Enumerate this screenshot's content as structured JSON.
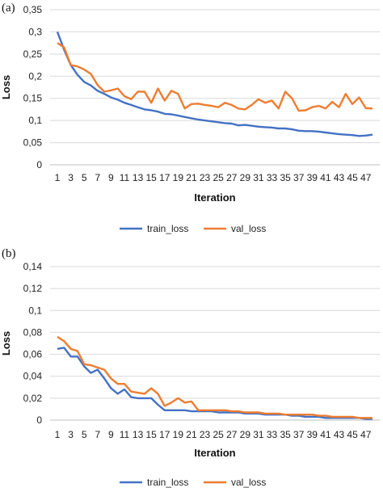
{
  "chart_data": [
    {
      "type": "line",
      "panel_label": "(a)",
      "xlabel": "Iteration",
      "ylabel": "Loss",
      "ylim": [
        0,
        0.35
      ],
      "yticks": [
        "0",
        "0,05",
        "0,1",
        "0,15",
        "0,2",
        "0,25",
        "0,3",
        "0,35"
      ],
      "x": [
        1,
        2,
        3,
        4,
        5,
        6,
        7,
        8,
        9,
        10,
        11,
        12,
        13,
        14,
        15,
        16,
        17,
        18,
        19,
        20,
        21,
        22,
        23,
        24,
        25,
        26,
        27,
        28,
        29,
        30,
        31,
        32,
        33,
        34,
        35,
        36,
        37,
        38,
        39,
        40,
        41,
        42,
        43,
        44,
        45,
        46,
        47,
        48
      ],
      "xticks_shown": [
        "1",
        "3",
        "5",
        "7",
        "9",
        "11",
        "13",
        "15",
        "17",
        "19",
        "21",
        "23",
        "25",
        "27",
        "29",
        "31",
        "33",
        "35",
        "37",
        "39",
        "41",
        "43",
        "45",
        "47"
      ],
      "legend_position": "bottom",
      "grid": "horizontal",
      "series": [
        {
          "name": "train_loss",
          "color": "#4472c4",
          "values": [
            0.3,
            0.26,
            0.225,
            0.203,
            0.187,
            0.179,
            0.167,
            0.16,
            0.152,
            0.147,
            0.14,
            0.135,
            0.13,
            0.125,
            0.123,
            0.12,
            0.115,
            0.114,
            0.111,
            0.108,
            0.105,
            0.102,
            0.1,
            0.098,
            0.096,
            0.094,
            0.093,
            0.089,
            0.09,
            0.088,
            0.086,
            0.085,
            0.084,
            0.082,
            0.082,
            0.08,
            0.077,
            0.076,
            0.076,
            0.075,
            0.073,
            0.071,
            0.069,
            0.068,
            0.067,
            0.065,
            0.066,
            0.068
          ]
        },
        {
          "name": "val_loss",
          "color": "#ed7d31",
          "values": [
            0.275,
            0.265,
            0.225,
            0.222,
            0.215,
            0.205,
            0.18,
            0.165,
            0.168,
            0.172,
            0.155,
            0.148,
            0.165,
            0.165,
            0.14,
            0.172,
            0.145,
            0.167,
            0.16,
            0.127,
            0.137,
            0.138,
            0.135,
            0.133,
            0.13,
            0.14,
            0.135,
            0.127,
            0.125,
            0.135,
            0.148,
            0.14,
            0.145,
            0.127,
            0.165,
            0.15,
            0.122,
            0.123,
            0.13,
            0.133,
            0.127,
            0.142,
            0.13,
            0.16,
            0.137,
            0.152,
            0.128,
            0.127
          ]
        }
      ]
    },
    {
      "type": "line",
      "panel_label": "(b)",
      "xlabel": "Iteration",
      "ylabel": "Loss",
      "ylim": [
        0,
        0.14
      ],
      "yticks": [
        "0",
        "0,02",
        "0,04",
        "0,06",
        "0,08",
        "0,1",
        "0,12",
        "0,14"
      ],
      "x": [
        1,
        2,
        3,
        4,
        5,
        6,
        7,
        8,
        9,
        10,
        11,
        12,
        13,
        14,
        15,
        16,
        17,
        18,
        19,
        20,
        21,
        22,
        23,
        24,
        25,
        26,
        27,
        28,
        29,
        30,
        31,
        32,
        33,
        34,
        35,
        36,
        37,
        38,
        39,
        40,
        41,
        42,
        43,
        44,
        45,
        46,
        47,
        48
      ],
      "xticks_shown": [
        "1",
        "3",
        "5",
        "7",
        "9",
        "11",
        "13",
        "15",
        "17",
        "19",
        "21",
        "23",
        "25",
        "27",
        "29",
        "31",
        "33",
        "35",
        "37",
        "39",
        "41",
        "43",
        "45",
        "47"
      ],
      "legend_position": "bottom",
      "grid": "horizontal",
      "series": [
        {
          "name": "train_loss",
          "color": "#4472c4",
          "values": [
            0.065,
            0.066,
            0.058,
            0.058,
            0.049,
            0.043,
            0.046,
            0.038,
            0.029,
            0.024,
            0.028,
            0.021,
            0.02,
            0.02,
            0.02,
            0.014,
            0.009,
            0.009,
            0.009,
            0.009,
            0.008,
            0.008,
            0.008,
            0.008,
            0.007,
            0.007,
            0.007,
            0.007,
            0.006,
            0.006,
            0.006,
            0.005,
            0.005,
            0.005,
            0.005,
            0.004,
            0.004,
            0.003,
            0.003,
            0.003,
            0.002,
            0.002,
            0.002,
            0.002,
            0.002,
            0.002,
            0.001,
            0.001
          ]
        },
        {
          "name": "val_loss",
          "color": "#ed7d31",
          "values": [
            0.076,
            0.072,
            0.065,
            0.063,
            0.051,
            0.05,
            0.048,
            0.046,
            0.038,
            0.033,
            0.033,
            0.026,
            0.025,
            0.024,
            0.029,
            0.024,
            0.013,
            0.016,
            0.02,
            0.016,
            0.017,
            0.009,
            0.009,
            0.009,
            0.009,
            0.009,
            0.008,
            0.008,
            0.007,
            0.007,
            0.007,
            0.006,
            0.006,
            0.006,
            0.005,
            0.005,
            0.005,
            0.005,
            0.005,
            0.004,
            0.004,
            0.003,
            0.003,
            0.003,
            0.003,
            0.002,
            0.002,
            0.002
          ]
        }
      ]
    }
  ]
}
